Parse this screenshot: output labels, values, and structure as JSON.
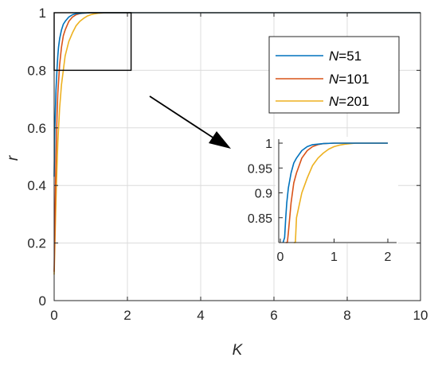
{
  "chart_data": [
    {
      "type": "line",
      "xlabel": "K",
      "ylabel": "r",
      "xlim": [
        0,
        10
      ],
      "ylim": [
        0,
        1
      ],
      "xticks": [
        "0",
        "2",
        "4",
        "6",
        "8",
        "10"
      ],
      "yticks": [
        "0",
        "0.2",
        "0.4",
        "0.6",
        "0.8",
        "1"
      ],
      "grid": true,
      "legend_position": "top-right",
      "legend": [
        {
          "label_prefix": "N",
          "label_suffix": "=51"
        },
        {
          "label_prefix": "N",
          "label_suffix": "=101"
        },
        {
          "label_prefix": "N",
          "label_suffix": "=201"
        }
      ],
      "series": [
        {
          "name": "N=51",
          "color": "#0072BD",
          "x": [
            0,
            0.02,
            0.05,
            0.08,
            0.1,
            0.12,
            0.15,
            0.2,
            0.25,
            0.3,
            0.4,
            0.5,
            0.6,
            0.8,
            1.0,
            1.5,
            2,
            10
          ],
          "y": [
            0.43,
            0.6,
            0.73,
            0.81,
            0.85,
            0.88,
            0.91,
            0.94,
            0.96,
            0.97,
            0.985,
            0.993,
            0.997,
            0.999,
            1,
            1,
            1,
            1
          ]
        },
        {
          "name": "N=101",
          "color": "#D95319",
          "x": [
            0,
            0.03,
            0.05,
            0.08,
            0.1,
            0.15,
            0.2,
            0.25,
            0.3,
            0.4,
            0.5,
            0.6,
            0.7,
            0.8,
            1.0,
            1.2,
            2,
            10
          ],
          "y": [
            0.1,
            0.35,
            0.5,
            0.65,
            0.72,
            0.82,
            0.88,
            0.92,
            0.94,
            0.97,
            0.985,
            0.993,
            0.997,
            0.999,
            1,
            1,
            1,
            1
          ]
        },
        {
          "name": "N=201",
          "color": "#EDB120",
          "x": [
            0,
            0.03,
            0.06,
            0.1,
            0.15,
            0.2,
            0.3,
            0.4,
            0.5,
            0.6,
            0.7,
            0.8,
            0.9,
            1.0,
            1.1,
            1.2,
            1.4,
            2,
            10
          ],
          "y": [
            0.09,
            0.25,
            0.4,
            0.55,
            0.67,
            0.75,
            0.85,
            0.9,
            0.93,
            0.955,
            0.97,
            0.98,
            0.988,
            0.993,
            0.996,
            0.998,
            1,
            1,
            1
          ]
        }
      ],
      "zoom_box": {
        "xlim": [
          0,
          2.1
        ],
        "ylim": [
          0.8,
          1.0
        ]
      }
    },
    {
      "type": "line",
      "xlim": [
        0,
        2.1
      ],
      "ylim": [
        0.8,
        1.0
      ],
      "xticks": [
        "0",
        "1",
        "2"
      ],
      "yticks": [
        "0.85",
        "0.9",
        "0.95",
        "1"
      ],
      "grid": false,
      "series": [
        {
          "name": "N=51",
          "color": "#0072BD",
          "x": [
            0.05,
            0.08,
            0.1,
            0.12,
            0.15,
            0.2,
            0.25,
            0.3,
            0.4,
            0.5,
            0.6,
            0.8,
            1.0,
            1.5,
            2.0
          ],
          "y": [
            0.8,
            0.81,
            0.85,
            0.88,
            0.91,
            0.94,
            0.96,
            0.97,
            0.985,
            0.993,
            0.997,
            0.999,
            1,
            1,
            1
          ]
        },
        {
          "name": "N=101",
          "color": "#D95319",
          "x": [
            0.1,
            0.13,
            0.15,
            0.2,
            0.25,
            0.3,
            0.4,
            0.5,
            0.6,
            0.7,
            0.8,
            1.0,
            1.2,
            2.0
          ],
          "y": [
            0.8,
            0.8,
            0.82,
            0.88,
            0.92,
            0.94,
            0.97,
            0.985,
            0.993,
            0.997,
            0.999,
            1,
            1,
            1
          ]
        },
        {
          "name": "N=201",
          "color": "#EDB120",
          "x": [
            0.25,
            0.28,
            0.3,
            0.4,
            0.5,
            0.6,
            0.7,
            0.8,
            0.9,
            1.0,
            1.1,
            1.2,
            1.4,
            2.0
          ],
          "y": [
            0.8,
            0.8,
            0.85,
            0.9,
            0.93,
            0.955,
            0.97,
            0.98,
            0.988,
            0.993,
            0.996,
            0.998,
            1,
            1
          ]
        }
      ]
    }
  ]
}
